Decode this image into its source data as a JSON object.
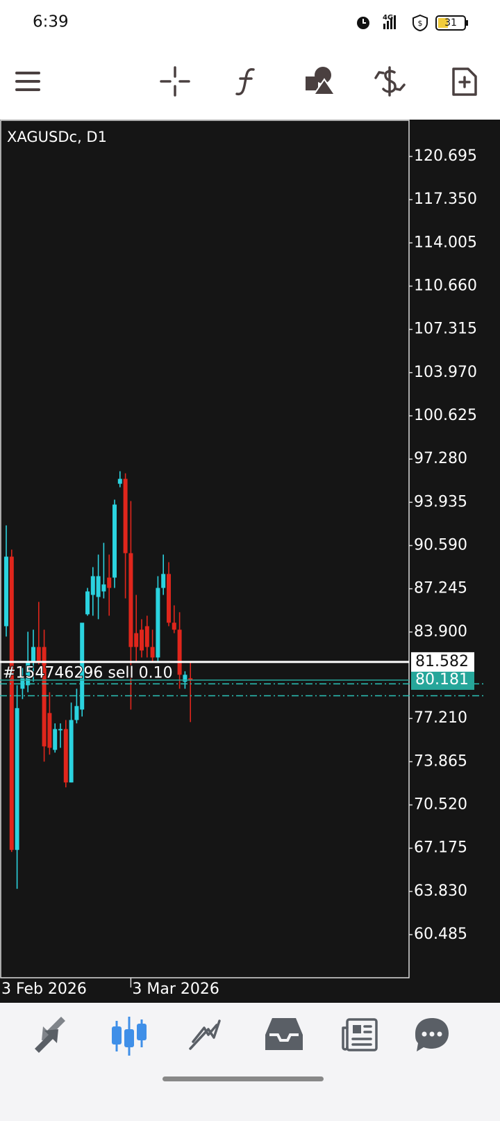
{
  "status_bar": {
    "time": "6:39",
    "network": "4G",
    "battery": "31"
  },
  "chart_data": {
    "type": "candlestick",
    "title": "XAGUSDc, D1",
    "categories": [
      "3 Feb 2026",
      null,
      null,
      null,
      null,
      null,
      null,
      null,
      null,
      null,
      null,
      null,
      null,
      null,
      null,
      null,
      null,
      null,
      null,
      null,
      null,
      null,
      null,
      "3 Mar 2026",
      null,
      null,
      null,
      null,
      null,
      null,
      null,
      null,
      null,
      null,
      null
    ],
    "open": [
      84.35,
      89.73,
      67.04,
      79.51,
      79.78,
      81.66,
      82.74,
      82.74,
      77.63,
      74.78,
      76.29,
      76.39,
      72.26,
      77.09,
      77.9,
      85.27,
      86.77,
      86.61,
      87.04,
      88.11,
      88.11,
      95.37,
      95.75,
      90.0,
      83.81,
      84.08,
      84.35,
      82.74,
      81.93,
      87.31,
      88.39,
      84.62,
      84.08,
      80.05,
      80.32
    ],
    "high": [
      92.15,
      90.27,
      79.78,
      81.12,
      83.92,
      84.08,
      86.23,
      84.08,
      79.24,
      76.83,
      76.83,
      77.09,
      78.44,
      79.51,
      84.62,
      87.31,
      88.92,
      89.89,
      90.8,
      89.89,
      94.14,
      96.34,
      96.18,
      94.03,
      86.77,
      84.89,
      85.16,
      84.08,
      88.22,
      89.89,
      89.3,
      85.96,
      85.43,
      80.86,
      81.66
    ],
    "low": [
      83.55,
      66.88,
      64.03,
      78.71,
      79.24,
      80.05,
      81.39,
      73.87,
      74.41,
      74.57,
      74.94,
      71.88,
      72.26,
      76.83,
      77.36,
      85.16,
      85.16,
      84.89,
      86.5,
      85.16,
      87.31,
      95.1,
      86.5,
      77.9,
      81.66,
      81.93,
      81.93,
      81.66,
      81.66,
      86.77,
      84.35,
      83.81,
      79.51,
      79.51,
      76.93
    ],
    "close": [
      89.73,
      67.04,
      78.01,
      80.32,
      81.66,
      82.74,
      81.66,
      75.05,
      74.94,
      76.39,
      76.39,
      72.26,
      77.09,
      78.17,
      84.62,
      87.04,
      88.22,
      88.22,
      87.58,
      87.31,
      93.76,
      95.75,
      90.0,
      82.74,
      82.74,
      82.47,
      82.74,
      81.93,
      87.31,
      88.39,
      84.62,
      84.08,
      80.59,
      80.59,
      80.18
    ],
    "up_color": "#2bd3df",
    "down_color": "#e0261c",
    "ylim": [
      57.15,
      123.49
    ],
    "yticks": [
      120.695,
      {
        "value": 117.35,
        "label": "117.350"
      },
      114.005,
      {
        "value": 110.66,
        "label": "110.660"
      },
      107.315,
      {
        "value": 103.97,
        "label": "103.970"
      },
      100.625,
      {
        "value": 97.28,
        "label": "97.280"
      },
      93.935,
      {
        "value": 90.59,
        "label": "90.590"
      },
      87.245,
      {
        "value": 83.9,
        "label": "83.900"
      },
      {
        "value": 77.21,
        "label": "77.210"
      },
      73.865,
      {
        "value": 70.52,
        "label": "70.520"
      },
      67.175,
      {
        "value": 63.83,
        "label": "63.830"
      },
      60.485
    ],
    "ask": 81.582,
    "bid": 80.181,
    "orders": [
      {
        "label": "#154746296 sell 0.10",
        "price": 79.89
      },
      {
        "price": 78.97
      }
    ]
  }
}
